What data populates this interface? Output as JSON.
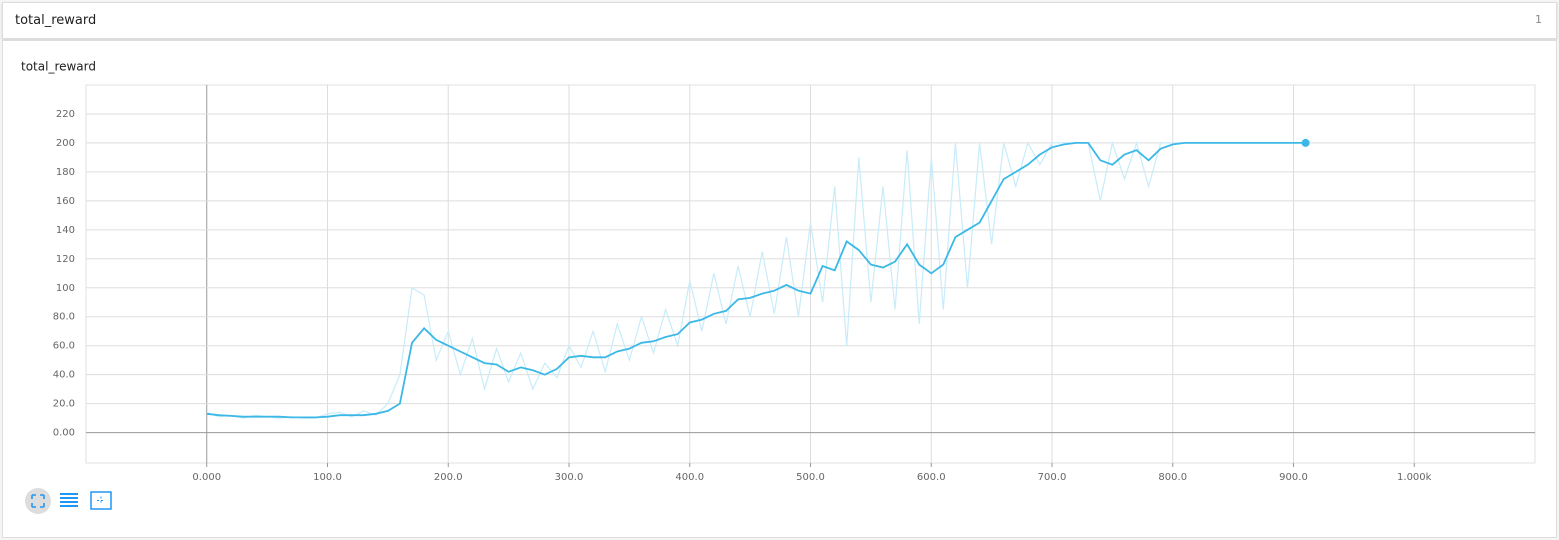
{
  "header": {
    "title": "total_reward",
    "count": 1
  },
  "chart_data": {
    "type": "line",
    "title": "total_reward",
    "x": [
      0,
      10,
      20,
      30,
      40,
      50,
      60,
      70,
      80,
      90,
      100,
      110,
      120,
      130,
      140,
      150,
      160,
      170,
      180,
      190,
      200,
      210,
      220,
      230,
      240,
      250,
      260,
      270,
      280,
      290,
      300,
      310,
      320,
      330,
      340,
      350,
      360,
      370,
      380,
      390,
      400,
      410,
      420,
      430,
      440,
      450,
      460,
      470,
      480,
      490,
      500,
      510,
      520,
      530,
      540,
      550,
      560,
      570,
      580,
      590,
      600,
      610,
      620,
      630,
      640,
      650,
      660,
      670,
      680,
      690,
      700,
      710,
      720,
      730,
      740,
      750,
      760,
      770,
      780,
      790,
      800,
      810,
      820,
      830,
      840,
      850,
      860,
      870,
      880,
      890,
      900,
      910
    ],
    "series": [
      {
        "color": "#c8ecfa",
        "values": [
          14,
          11,
          12,
          10,
          12,
          11,
          10,
          11,
          10,
          10,
          13,
          14,
          11,
          15,
          12,
          20,
          40,
          100,
          95,
          50,
          70,
          40,
          65,
          30,
          58,
          35,
          55,
          30,
          48,
          38,
          60,
          45,
          70,
          42,
          75,
          50,
          80,
          55,
          85,
          60,
          105,
          70,
          110,
          75,
          115,
          80,
          125,
          82,
          135,
          80,
          145,
          90,
          170,
          60,
          190,
          90,
          170,
          85,
          195,
          75,
          190,
          85,
          200,
          100,
          200,
          130,
          200,
          170,
          200,
          185,
          200,
          200,
          200,
          200,
          160,
          200,
          175,
          200,
          170,
          200,
          200,
          200,
          200,
          200,
          200,
          200,
          200,
          200,
          200,
          200,
          200,
          200
        ]
      },
      {
        "color": "#3cb8e6",
        "values": [
          13,
          12,
          11.5,
          11,
          11,
          11,
          11,
          10.5,
          10.5,
          10.5,
          11,
          12,
          12,
          12,
          13,
          15,
          20,
          62,
          72,
          64,
          60,
          56,
          52,
          48,
          47,
          42,
          45,
          43,
          40,
          44,
          52,
          53,
          52,
          52,
          56,
          58,
          62,
          63,
          66,
          68,
          76,
          78,
          82,
          84,
          92,
          93,
          96,
          98,
          102,
          98,
          96,
          115,
          112,
          132,
          126,
          116,
          114,
          118,
          130,
          116,
          110,
          116,
          135,
          140,
          145,
          160,
          175,
          180,
          185,
          192,
          197,
          199,
          200,
          200,
          188,
          185,
          192,
          195,
          188,
          196,
          199,
          200,
          200,
          200,
          200,
          200,
          200,
          200,
          200,
          200,
          200,
          200
        ]
      }
    ],
    "xlim": [
      -100,
      1100
    ],
    "xticks": [
      {
        "value": 0,
        "label": "0.000"
      },
      {
        "value": 100,
        "label": "100.0"
      },
      {
        "value": 200,
        "label": "200.0"
      },
      {
        "value": 300,
        "label": "300.0"
      },
      {
        "value": 400,
        "label": "400.0"
      },
      {
        "value": 500,
        "label": "500.0"
      },
      {
        "value": 600,
        "label": "600.0"
      },
      {
        "value": 700,
        "label": "700.0"
      },
      {
        "value": 800,
        "label": "800.0"
      },
      {
        "value": 900,
        "label": "900.0"
      },
      {
        "value": 1000,
        "label": "1.000k"
      }
    ],
    "ylim": [
      -21,
      240
    ],
    "yticks": [
      {
        "value": 0,
        "label": "0.00"
      },
      {
        "value": 20,
        "label": "20.0"
      },
      {
        "value": 40,
        "label": "40.0"
      },
      {
        "value": 60,
        "label": "60.0"
      },
      {
        "value": 80,
        "label": "80.0"
      },
      {
        "value": 100,
        "label": "100"
      },
      {
        "value": 120,
        "label": "120"
      },
      {
        "value": 140,
        "label": "140"
      },
      {
        "value": 160,
        "label": "160"
      },
      {
        "value": 180,
        "label": "180"
      },
      200,
      220
    ],
    "grid": true
  }
}
